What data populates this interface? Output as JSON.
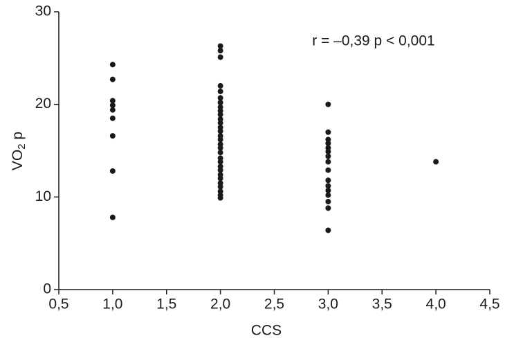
{
  "chart_data": {
    "type": "scatter",
    "xlabel": "CCS",
    "ylabel": [
      "VO",
      "2",
      " p"
    ],
    "annotation": "r = –0,39  p < 0,001",
    "color": "#1a1a1a",
    "x": [
      1,
      1,
      1,
      1,
      1,
      1,
      1,
      1,
      1,
      2,
      2,
      2,
      2,
      2,
      2,
      2,
      2,
      2,
      2,
      2,
      2,
      2,
      2,
      2,
      2,
      2,
      2,
      2,
      2,
      2,
      2,
      2,
      2,
      2,
      2,
      2,
      2,
      2,
      2,
      3,
      3,
      3,
      3,
      3,
      3,
      3,
      3,
      3,
      3,
      3,
      3,
      3,
      3,
      3,
      3,
      4
    ],
    "values": [
      24.3,
      22.7,
      20.4,
      19.9,
      19.4,
      18.5,
      16.6,
      12.8,
      7.8,
      26.3,
      25.8,
      25.1,
      22.0,
      21.4,
      20.7,
      20.2,
      19.7,
      19.3,
      18.9,
      18.4,
      18.0,
      17.5,
      17.1,
      16.6,
      16.2,
      15.7,
      15.3,
      14.8,
      14.2,
      13.8,
      13.3,
      12.9,
      12.4,
      12.0,
      11.5,
      11.1,
      10.6,
      10.2,
      9.9,
      20.0,
      17.0,
      16.2,
      15.8,
      15.3,
      14.9,
      14.4,
      13.8,
      12.9,
      11.8,
      11.2,
      10.7,
      10.2,
      9.5,
      8.8,
      6.4,
      13.8
    ],
    "xlim": [
      0.5,
      4.5
    ],
    "xticks": [
      {
        "value": 0.5,
        "label": "0,5"
      },
      {
        "value": 1.0,
        "label": "1,0"
      },
      {
        "value": 1.5,
        "label": "1,5"
      },
      {
        "value": 2.0,
        "label": "2,0"
      },
      {
        "value": 2.5,
        "label": "2,5"
      },
      {
        "value": 3.0,
        "label": "3,0"
      },
      {
        "value": 3.5,
        "label": "3,5"
      },
      {
        "value": 4.0,
        "label": "4,0"
      },
      {
        "value": 4.5,
        "label": "4,5"
      }
    ],
    "ylim": [
      0,
      30
    ],
    "yticks": [
      0,
      10,
      20,
      30
    ]
  }
}
